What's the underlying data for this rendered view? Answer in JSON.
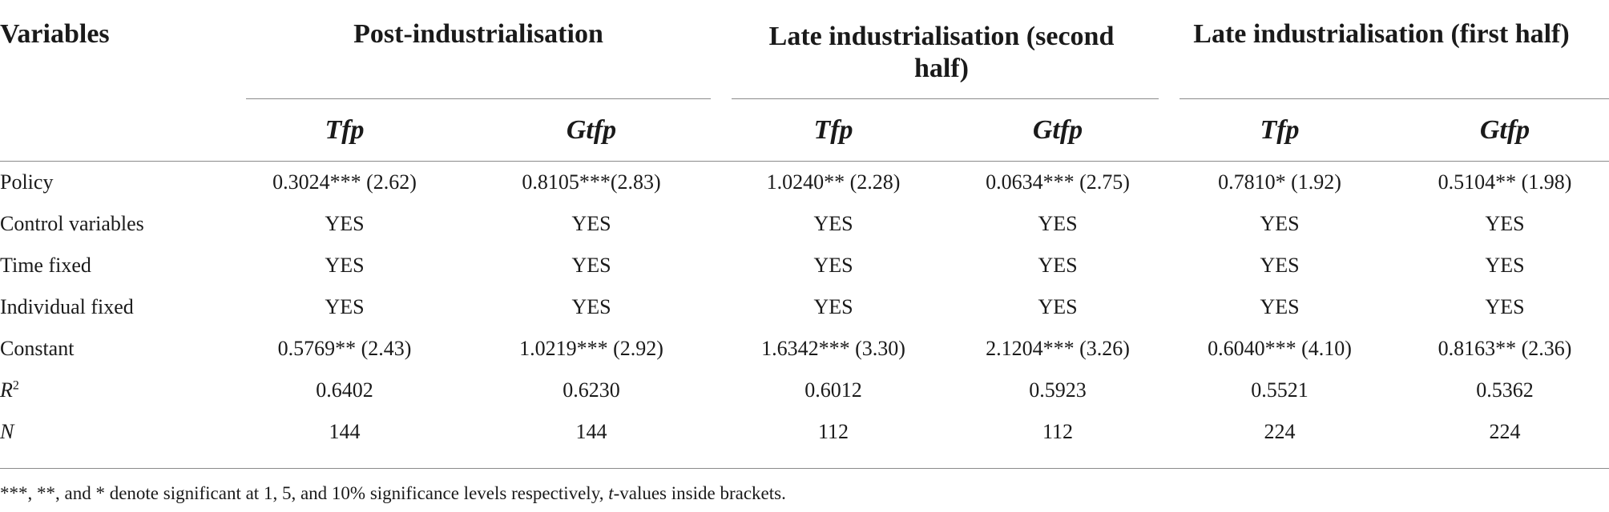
{
  "table": {
    "variables_header": "Variables",
    "groups": [
      {
        "label": "Post-industrialisation"
      },
      {
        "label": "Late industrialisation (second half)"
      },
      {
        "label": "Late industrialisation (first half)"
      }
    ],
    "subheaders": [
      "Tfp",
      "Gtfp",
      "Tfp",
      "Gtfp",
      "Tfp",
      "Gtfp"
    ],
    "rows": [
      {
        "label": "Policy",
        "cells": [
          "0.3024*** (2.62)",
          "0.8105***(2.83)",
          "1.0240** (2.28)",
          "0.0634*** (2.75)",
          "0.7810* (1.92)",
          "0.5104** (1.98)"
        ]
      },
      {
        "label": "Control variables",
        "cells": [
          "YES",
          "YES",
          "YES",
          "YES",
          "YES",
          "YES"
        ]
      },
      {
        "label": "Time fixed",
        "cells": [
          "YES",
          "YES",
          "YES",
          "YES",
          "YES",
          "YES"
        ]
      },
      {
        "label": "Individual fixed",
        "cells": [
          "YES",
          "YES",
          "YES",
          "YES",
          "YES",
          "YES"
        ]
      },
      {
        "label": "Constant",
        "cells": [
          "0.5769** (2.43)",
          "1.0219*** (2.92)",
          "1.6342*** (3.30)",
          "2.1204*** (3.26)",
          "0.6040*** (4.10)",
          "0.8163** (2.36)"
        ]
      },
      {
        "label_main": "R",
        "label_sup": "2",
        "cells": [
          "0.6402",
          "0.6230",
          "0.6012",
          "0.5923",
          "0.5521",
          "0.5362"
        ]
      },
      {
        "label": "N",
        "cells": [
          "144",
          "144",
          "112",
          "112",
          "224",
          "224"
        ]
      }
    ],
    "footnote": {
      "before": "***, **, and * denote significant at 1, 5, and 10% significance levels respectively, ",
      "italic": "t",
      "after": "-values inside brackets."
    }
  }
}
